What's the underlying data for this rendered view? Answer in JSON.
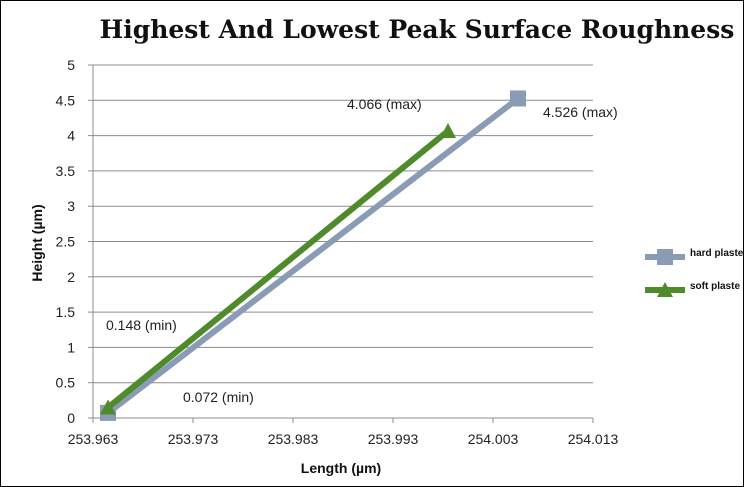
{
  "chart_data": {
    "type": "line",
    "title": "Highest And Lowest Peak Surface Roughness",
    "xlabel": "Length (µm)",
    "ylabel": "Height (µm)",
    "xlim": [
      253.963,
      254.013
    ],
    "ylim": [
      0,
      5
    ],
    "x_ticks": [
      "253.963",
      "253.973",
      "253.983",
      "253.993",
      "254.003",
      "254.013"
    ],
    "y_ticks": [
      "0",
      "0.5",
      "1",
      "1.5",
      "2",
      "2.5",
      "3",
      "3.5",
      "4",
      "4.5",
      "5"
    ],
    "grid": true,
    "legend_position": "right",
    "series": [
      {
        "name": "hard plaste",
        "color": "#8a9bb5",
        "marker": "square",
        "points": [
          {
            "x": 253.9645,
            "y": 0.072,
            "label": "0.072 (min)"
          },
          {
            "x": 254.0055,
            "y": 4.526,
            "label": "4.526 (max)"
          }
        ]
      },
      {
        "name": "soft plaste",
        "color": "#4f8a2b",
        "marker": "triangle",
        "points": [
          {
            "x": 253.9645,
            "y": 0.148,
            "label": "0.148 (min)"
          },
          {
            "x": 253.9985,
            "y": 4.066,
            "label": "4.066 (max)"
          }
        ]
      }
    ]
  }
}
